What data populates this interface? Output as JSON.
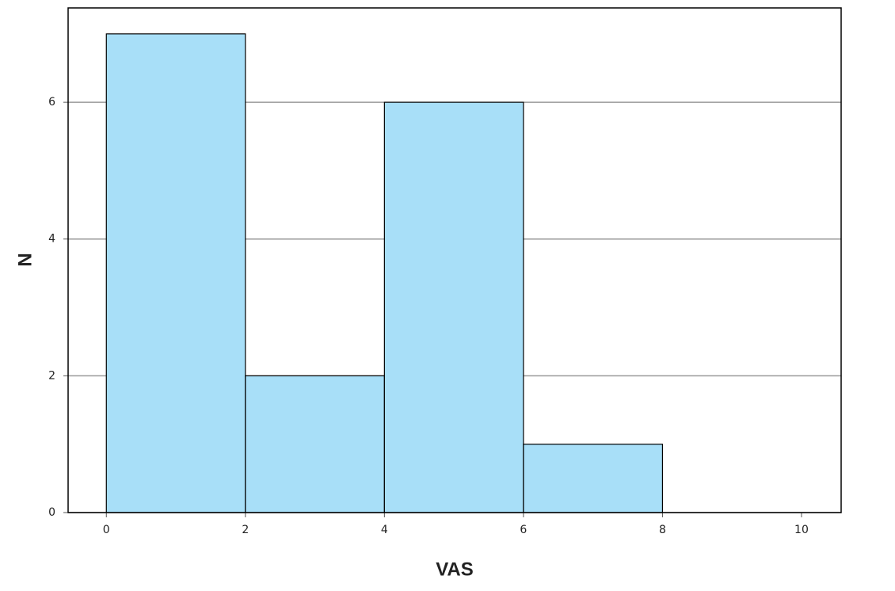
{
  "chart_data": {
    "type": "histogram",
    "xlabel": "VAS",
    "ylabel": "N",
    "bins": [
      0,
      2,
      4,
      6,
      8
    ],
    "values": [
      7,
      2,
      6,
      1
    ],
    "color": "#a8dff8",
    "xlim": [
      -0.55,
      10.57
    ],
    "xticks": [
      0,
      2,
      4,
      6,
      8,
      10
    ],
    "ylim": [
      0,
      7.38
    ],
    "yticks": [
      0,
      2,
      4,
      6
    ],
    "grid": true
  }
}
